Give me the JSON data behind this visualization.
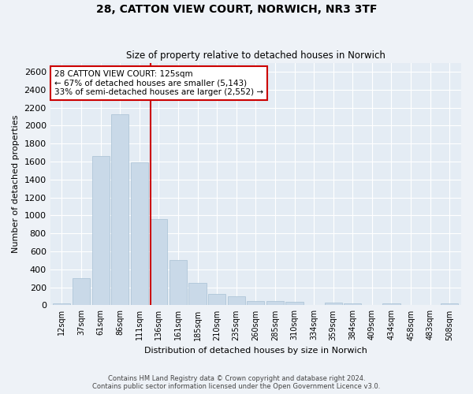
{
  "title": "28, CATTON VIEW COURT, NORWICH, NR3 3TF",
  "subtitle": "Size of property relative to detached houses in Norwich",
  "xlabel": "Distribution of detached houses by size in Norwich",
  "ylabel": "Number of detached properties",
  "bar_color": "#c9d9e8",
  "bar_edge_color": "#a8c0d4",
  "vline_color": "#cc0000",
  "annotation_title": "28 CATTON VIEW COURT: 125sqm",
  "annotation_line1": "← 67% of detached houses are smaller (5,143)",
  "annotation_line2": "33% of semi-detached houses are larger (2,552) →",
  "annotation_box_color": "#cc0000",
  "categories": [
    "12sqm",
    "37sqm",
    "61sqm",
    "86sqm",
    "111sqm",
    "136sqm",
    "161sqm",
    "185sqm",
    "210sqm",
    "235sqm",
    "260sqm",
    "285sqm",
    "310sqm",
    "334sqm",
    "359sqm",
    "384sqm",
    "409sqm",
    "434sqm",
    "458sqm",
    "483sqm",
    "508sqm"
  ],
  "values": [
    25,
    300,
    1660,
    2130,
    1590,
    960,
    500,
    250,
    125,
    100,
    50,
    50,
    35,
    0,
    30,
    20,
    0,
    25,
    0,
    0,
    25
  ],
  "ylim": [
    0,
    2700
  ],
  "yticks": [
    0,
    200,
    400,
    600,
    800,
    1000,
    1200,
    1400,
    1600,
    1800,
    2000,
    2200,
    2400,
    2600
  ],
  "vline_x": 4.56,
  "footer1": "Contains HM Land Registry data © Crown copyright and database right 2024.",
  "footer2": "Contains public sector information licensed under the Open Government Licence v3.0.",
  "bg_color": "#eef2f7",
  "plot_bg_color": "#e4ecf4"
}
